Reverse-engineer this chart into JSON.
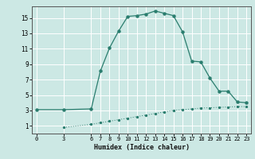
{
  "title": "",
  "xlabel": "Humidex (Indice chaleur)",
  "bg_color": "#cce8e4",
  "grid_color": "#ffffff",
  "line_color": "#2a7d6e",
  "xlim": [
    -0.5,
    23.5
  ],
  "ylim": [
    0,
    16.5
  ],
  "xticks": [
    0,
    3,
    6,
    7,
    8,
    9,
    10,
    11,
    12,
    13,
    14,
    15,
    16,
    17,
    18,
    19,
    20,
    21,
    22,
    23
  ],
  "yticks": [
    1,
    3,
    5,
    7,
    9,
    11,
    13,
    15
  ],
  "upper_x": [
    0,
    3,
    6,
    7,
    8,
    9,
    10,
    11,
    12,
    13,
    14,
    15,
    16,
    17,
    18,
    19,
    20,
    21,
    22,
    23
  ],
  "upper_y": [
    3.1,
    3.1,
    3.2,
    8.1,
    11.1,
    13.3,
    15.2,
    15.3,
    15.5,
    15.9,
    15.6,
    15.3,
    13.2,
    9.4,
    9.3,
    7.2,
    5.5,
    5.5,
    4.1,
    4.0
  ],
  "lower_x": [
    3,
    6,
    7,
    8,
    9,
    10,
    11,
    12,
    13,
    14,
    15,
    16,
    17,
    18,
    19,
    20,
    21,
    22,
    23
  ],
  "lower_y": [
    0.8,
    1.2,
    1.4,
    1.6,
    1.8,
    2.0,
    2.2,
    2.4,
    2.6,
    2.8,
    3.0,
    3.1,
    3.2,
    3.3,
    3.35,
    3.4,
    3.45,
    3.5,
    3.5
  ]
}
